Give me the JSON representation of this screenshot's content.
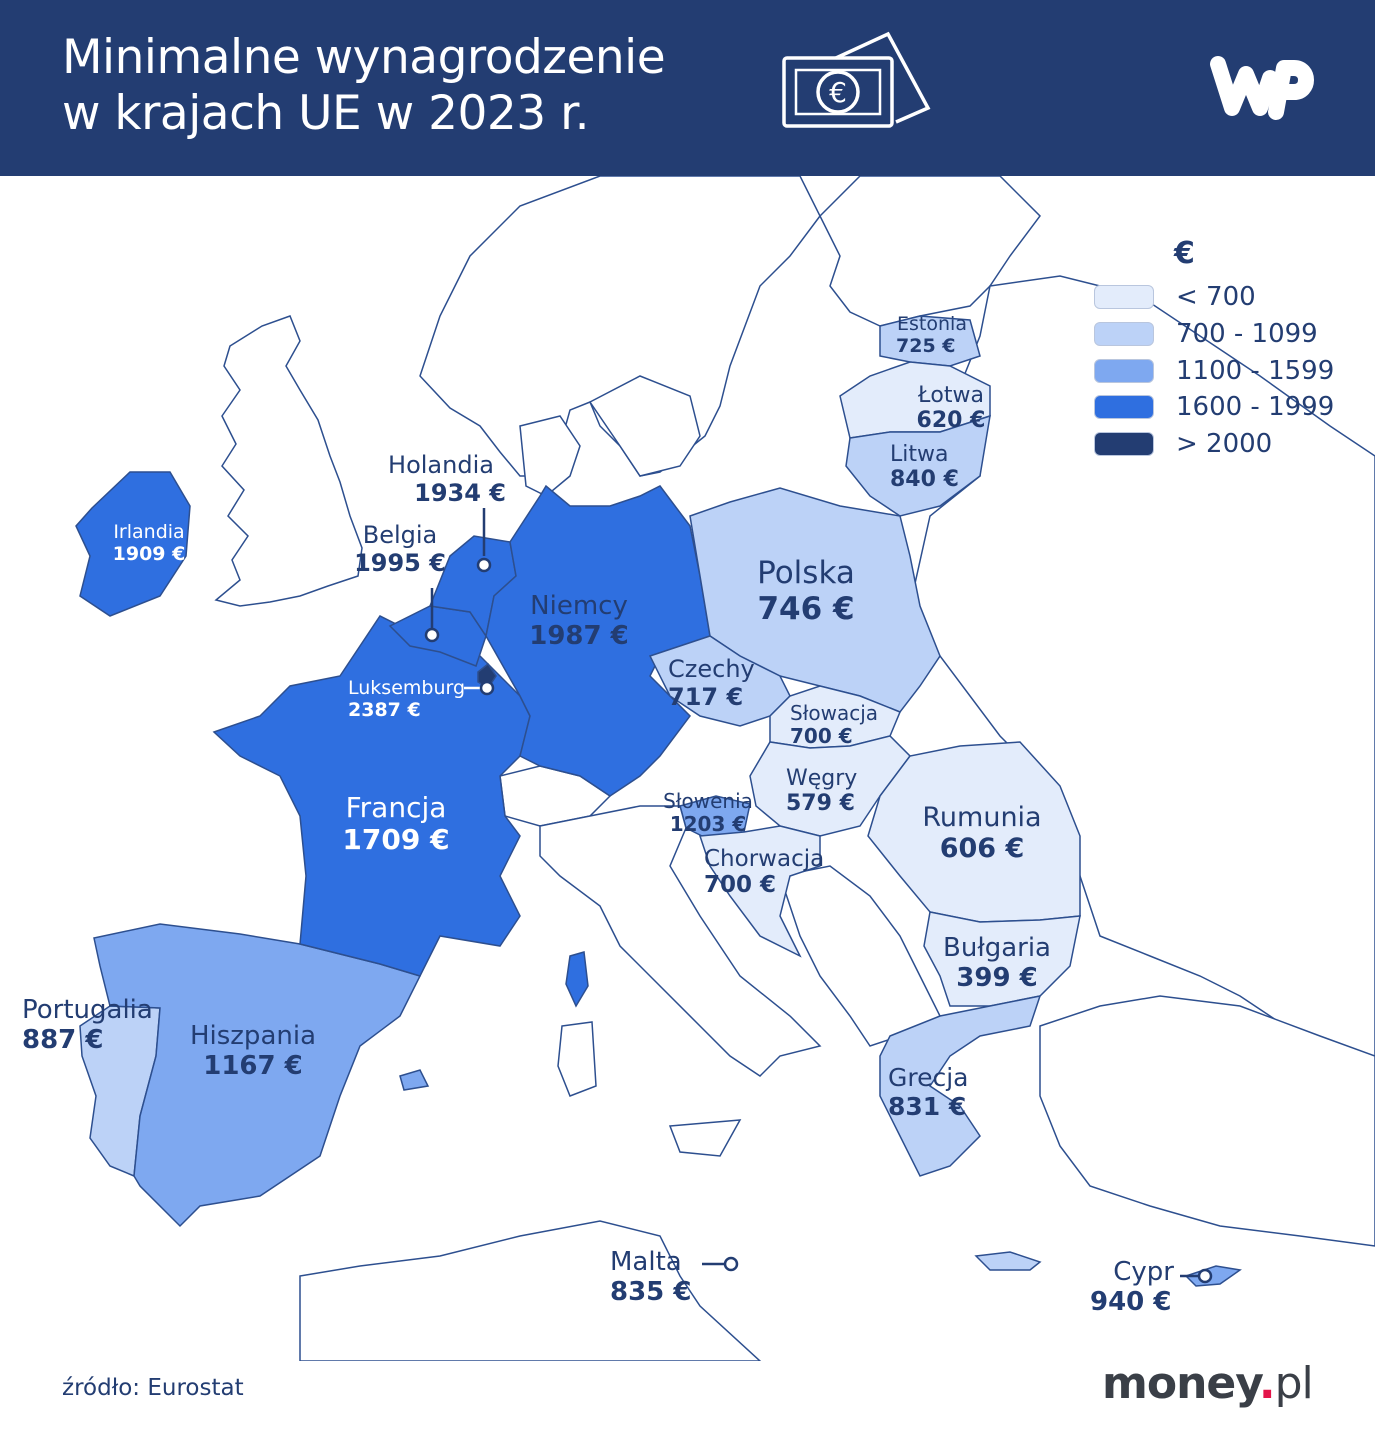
{
  "header": {
    "title_line1": "Minimalne wynagrodzenie",
    "title_line2": "w krajach UE w 2023 r.",
    "money_symbol": "€",
    "logo": "WP",
    "background": "#233d72"
  },
  "legend": {
    "title": "€",
    "items": [
      {
        "label": "< 700",
        "color": "#e3ecfb"
      },
      {
        "label": "700 - 1099",
        "color": "#bcd2f7"
      },
      {
        "label": "1100 - 1599",
        "color": "#7ea8f0"
      },
      {
        "label": "1600 - 1999",
        "color": "#2f6fe0"
      },
      {
        "label": "> 2000",
        "color": "#233d72"
      }
    ]
  },
  "countries": {
    "irlandia": {
      "name": "Irlandia",
      "value": "1909 €"
    },
    "holandia": {
      "name": "Holandia",
      "value": "1934 €"
    },
    "belgia": {
      "name": "Belgia",
      "value": "1995 €"
    },
    "luksemburg": {
      "name": "Luksemburg",
      "value": "2387 €"
    },
    "niemcy": {
      "name": "Niemcy",
      "value": "1987 €"
    },
    "francja": {
      "name": "Francja",
      "value": "1709 €"
    },
    "portugalia": {
      "name": "Portugalia",
      "value": "887 €"
    },
    "hiszpania": {
      "name": "Hiszpania",
      "value": "1167 €"
    },
    "polska": {
      "name": "Polska",
      "value": "746 €"
    },
    "czechy": {
      "name": "Czechy",
      "value": "717 €"
    },
    "slowacja": {
      "name": "Słowacja",
      "value": "700 €"
    },
    "wegry": {
      "name": "Węgry",
      "value": "579 €"
    },
    "slowenia": {
      "name": "Słowenia",
      "value": "1203 €"
    },
    "chorwacja": {
      "name": "Chorwacja",
      "value": "700 €"
    },
    "rumunia": {
      "name": "Rumunia",
      "value": "606 €"
    },
    "bulgaria": {
      "name": "Bułgaria",
      "value": "399 €"
    },
    "grecja": {
      "name": "Grecja",
      "value": "831 €"
    },
    "estonia": {
      "name": "Estonia",
      "value": "725 €"
    },
    "lotwa": {
      "name": "Łotwa",
      "value": "620 €"
    },
    "litwa": {
      "name": "Litwa",
      "value": "840 €"
    },
    "malta": {
      "name": "Malta",
      "value": "835 €"
    },
    "cypr": {
      "name": "Cypr",
      "value": "940 €"
    }
  },
  "footer": {
    "source": "źródło: Eurostat",
    "brand_main": "money",
    "brand_dot": ".",
    "brand_tld": "pl"
  }
}
